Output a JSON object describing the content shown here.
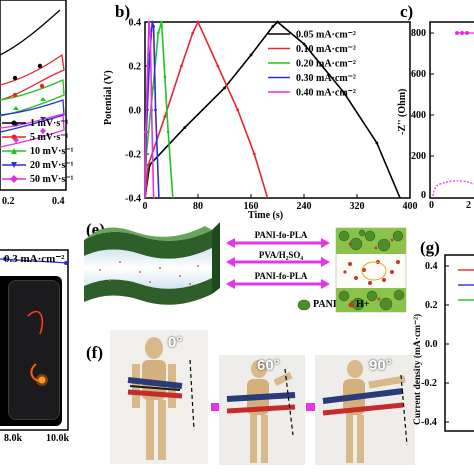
{
  "panels": {
    "a_legend": [
      "1 mV·s⁻¹",
      "5 mV·s⁻¹",
      "10 mV·s⁻¹",
      "20 mV·s⁻¹",
      "50 mV·s⁻¹"
    ],
    "a_ticks_x": [
      "0.2",
      "0.4"
    ],
    "b_letter": "b)",
    "c_letter": "c)",
    "e_letter": "(e)",
    "f_letter": "(f)",
    "g_letter": "(g)",
    "d_label": "0.3 mA·cm⁻²",
    "d_ticks_x": [
      "8.0k",
      "10.0k"
    ],
    "c_ylabel": "-Z'' (Ohm)",
    "c_ticks_y": [
      "800",
      "600",
      "400",
      "200",
      "0"
    ],
    "c_ticks_x": [
      "0",
      "2"
    ],
    "g_ylabel": "Current density (mA·cm⁻²)",
    "g_ticks_y": [
      "0.4",
      "0.2",
      "0.0",
      "-0.2",
      "-0.4"
    ],
    "e_labels": {
      "top": "PANI-fo-PLA",
      "middle": "PVA/H₂SO₄",
      "bottom": "PANI-fo-PLA",
      "legend_pani": "PANI",
      "legend_h": "H+"
    },
    "f_angles": [
      "0°",
      "60°",
      "90°"
    ]
  },
  "chart_data": [
    {
      "type": "line",
      "panel": "b",
      "xlabel": "Time (s)",
      "ylabel": "Potential (V)",
      "xlim": [
        0,
        400
      ],
      "ylim": [
        -0.4,
        0.4
      ],
      "x_ticks": [
        "0",
        "80",
        "160",
        "240",
        "320",
        "400"
      ],
      "y_ticks": [
        "0.4",
        "0.2",
        "0.0",
        "-0.2",
        "-0.4"
      ],
      "legend": "top-right",
      "series": [
        {
          "name": "0.05 mA·cm⁻²",
          "color": "#000000",
          "x": [
            0,
            7,
            60,
            120,
            160,
            193,
            200,
            240,
            300,
            350,
            385
          ],
          "y": [
            -0.4,
            -0.25,
            -0.08,
            0.1,
            0.25,
            0.38,
            0.4,
            0.3,
            0.08,
            -0.15,
            -0.4
          ]
        },
        {
          "name": "0.10 mA·cm⁻²",
          "color": "#e8262b",
          "x": [
            0,
            5,
            30,
            55,
            72,
            80,
            110,
            140,
            165,
            185
          ],
          "y": [
            -0.4,
            -0.25,
            -0.03,
            0.2,
            0.35,
            0.4,
            0.2,
            0.0,
            -0.2,
            -0.4
          ]
        },
        {
          "name": "0.20 mA·cm⁻²",
          "color": "#21c321",
          "x": [
            0,
            2,
            12,
            20,
            25,
            30,
            35,
            42
          ],
          "y": [
            -0.4,
            -0.2,
            0.1,
            0.35,
            0.4,
            0.15,
            -0.1,
            -0.4
          ]
        },
        {
          "name": "0.30 mA·cm⁻²",
          "color": "#2b2fd6",
          "x": [
            0,
            2,
            7,
            11,
            13,
            16,
            21
          ],
          "y": [
            -0.4,
            -0.1,
            0.25,
            0.4,
            0.38,
            0.0,
            -0.4
          ]
        },
        {
          "name": "0.40 mA·cm⁻²",
          "color": "#e230e2",
          "x": [
            0,
            1,
            4,
            6,
            8,
            10,
            13
          ],
          "y": [
            -0.4,
            -0.1,
            0.2,
            0.4,
            0.35,
            0.0,
            -0.4
          ]
        }
      ]
    }
  ],
  "colors": {
    "black": "#000000",
    "red": "#e8262b",
    "green": "#21c321",
    "blue": "#2b2fd6",
    "magenta": "#e230e2",
    "arrow": "#e635e6",
    "electrode": "#2e5e2a"
  }
}
